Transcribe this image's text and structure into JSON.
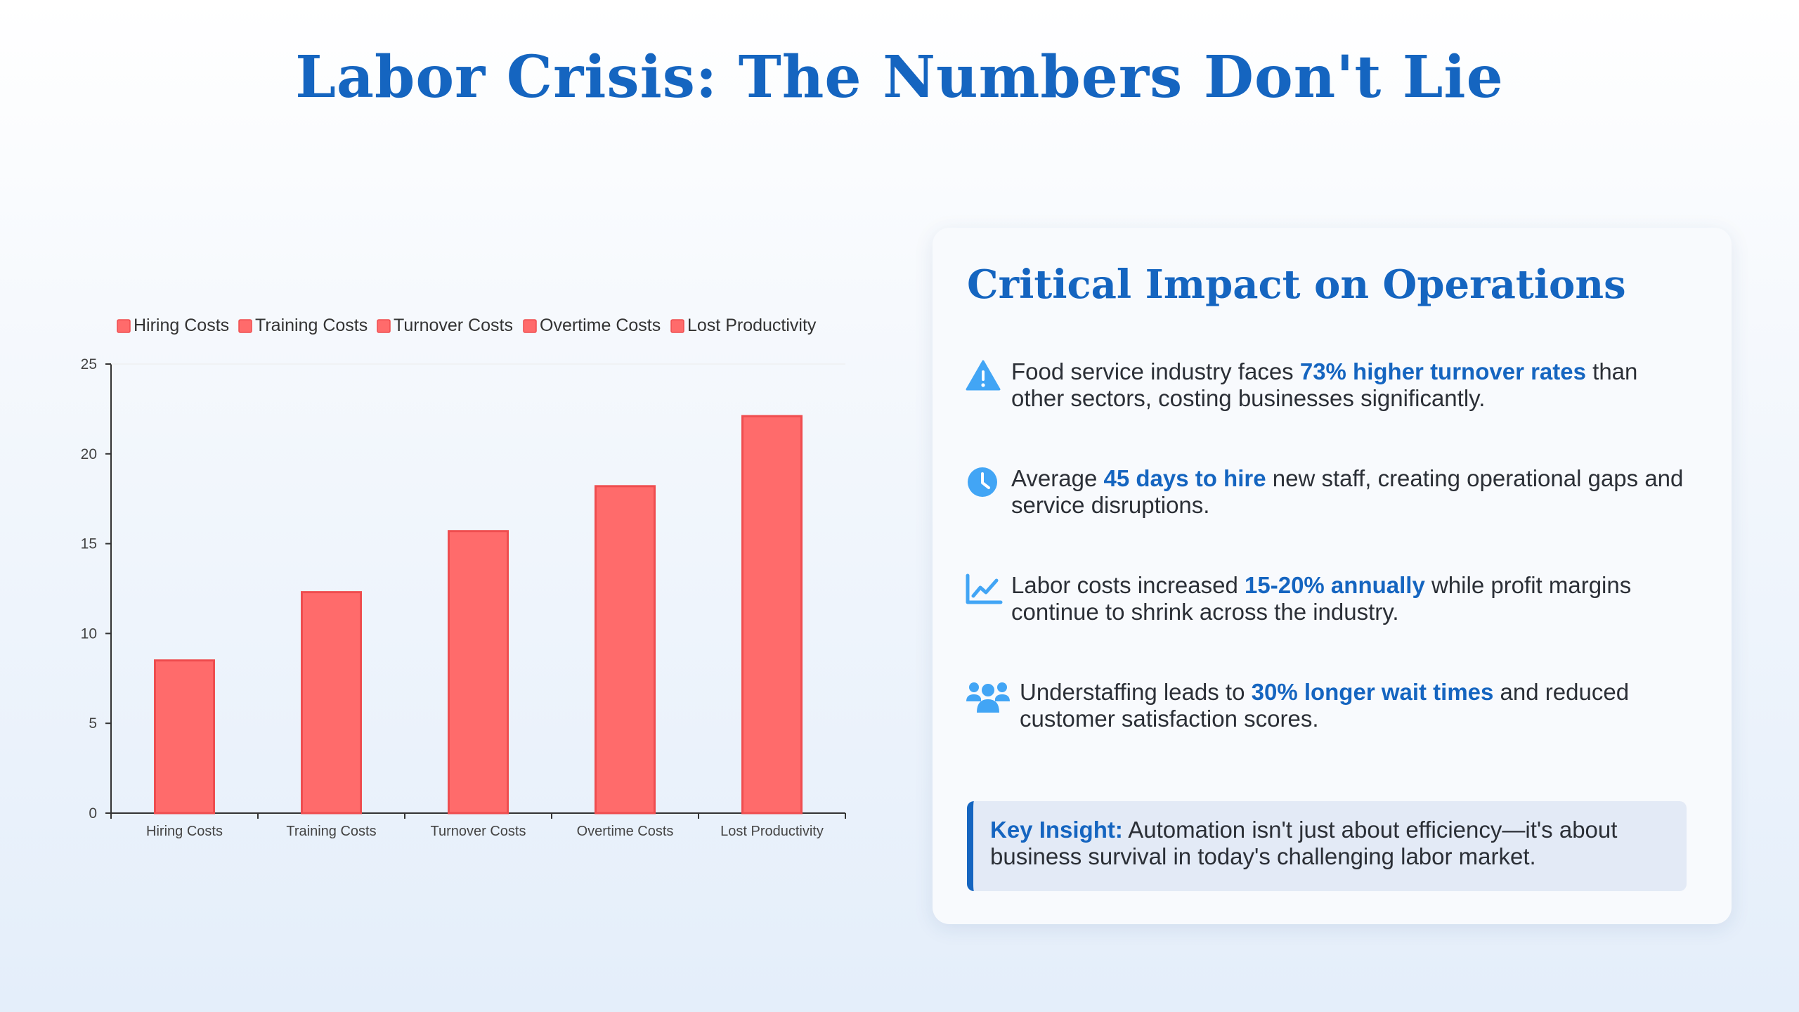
{
  "page": {
    "title": "Labor Crisis: The Numbers Don't Lie"
  },
  "colors": {
    "accent": "#1565c0",
    "bar": "#ff6b6b",
    "bar_border": "#ef4d4f",
    "icon": "#42a5f5"
  },
  "chart_data": {
    "type": "bar",
    "title": "",
    "xlabel": "",
    "ylabel": "",
    "categories": [
      "Hiring Costs",
      "Training Costs",
      "Turnover Costs",
      "Overtime Costs",
      "Lost Productivity"
    ],
    "values": [
      8.5,
      12.3,
      15.7,
      18.2,
      22.1
    ],
    "legend": [
      "Hiring Costs",
      "Training Costs",
      "Turnover Costs",
      "Overtime Costs",
      "Lost Productivity"
    ],
    "legend_position": "top",
    "ylim": [
      0,
      25
    ],
    "yticks": [
      0,
      5,
      10,
      15,
      20,
      25
    ],
    "grid": false
  },
  "panel": {
    "title": "Critical Impact on Operations",
    "items": [
      {
        "icon": "warning-icon",
        "pre": "Food service industry faces ",
        "highlight": "73% higher turnover rates",
        "post": " than other sectors, costing businesses significantly."
      },
      {
        "icon": "clock-icon",
        "pre": "Average ",
        "highlight": "45 days to hire",
        "post": " new staff, creating operational gaps and service disruptions."
      },
      {
        "icon": "chart-line-icon",
        "pre": "Labor costs increased ",
        "highlight": "15-20% annually",
        "post": " while profit margins continue to shrink across the industry."
      },
      {
        "icon": "users-icon",
        "pre": "Understaffing leads to ",
        "highlight": "30% longer wait times",
        "post": " and reduced customer satisfaction scores."
      }
    ],
    "insight": {
      "label": "Key Insight:",
      "text": "Automation isn't just about efficiency—it's about business survival in today's challenging labor market."
    }
  }
}
